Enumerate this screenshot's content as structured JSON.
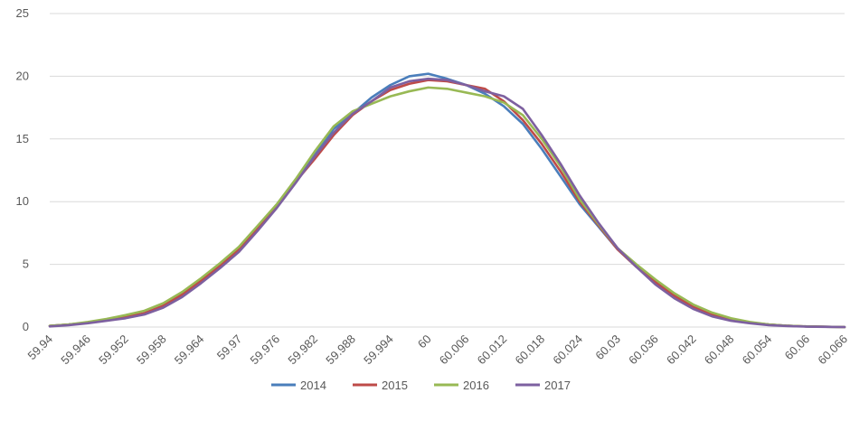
{
  "chart_data": {
    "type": "line",
    "title": "",
    "xlabel": "",
    "ylabel": "",
    "ylim": [
      0,
      25
    ],
    "yticks": [
      0,
      5,
      10,
      15,
      20,
      25
    ],
    "grid": true,
    "legend_position": "bottom",
    "x": [
      59.94,
      59.943,
      59.946,
      59.949,
      59.952,
      59.955,
      59.958,
      59.961,
      59.964,
      59.967,
      59.97,
      59.973,
      59.976,
      59.979,
      59.982,
      59.985,
      59.988,
      59.991,
      59.994,
      59.997,
      60,
      60.003,
      60.006,
      60.009,
      60.012,
      60.015,
      60.018,
      60.021,
      60.024,
      60.027,
      60.03,
      60.033,
      60.036,
      60.039,
      60.042,
      60.045,
      60.048,
      60.051,
      60.054,
      60.057,
      60.06,
      60.063,
      60.066
    ],
    "x_tick_labels": [
      "59.94",
      "59.946",
      "59.952",
      "59.958",
      "59.964",
      "59.97",
      "59.976",
      "59.982",
      "59.988",
      "59.994",
      "60",
      "60.006",
      "60.012",
      "60.018",
      "60.024",
      "60.03",
      "60.036",
      "60.042",
      "60.048",
      "60.054",
      "60.06",
      "60.066"
    ],
    "series": [
      {
        "name": "2014",
        "color": "#4a7ebb",
        "values": [
          0.1,
          0.2,
          0.35,
          0.55,
          0.8,
          1.1,
          1.7,
          2.6,
          3.7,
          4.9,
          6.2,
          7.9,
          9.6,
          11.6,
          13.7,
          15.8,
          17.0,
          18.3,
          19.3,
          20.0,
          20.2,
          19.8,
          19.3,
          18.6,
          17.6,
          16.2,
          14.2,
          12.0,
          9.8,
          8.0,
          6.2,
          4.8,
          3.6,
          2.5,
          1.6,
          1.0,
          0.6,
          0.35,
          0.2,
          0.1,
          0.05,
          0.02,
          0.0
        ]
      },
      {
        "name": "2015",
        "color": "#be4b48",
        "values": [
          0.1,
          0.2,
          0.35,
          0.55,
          0.8,
          1.1,
          1.7,
          2.6,
          3.7,
          4.9,
          6.2,
          7.9,
          9.6,
          11.6,
          13.4,
          15.3,
          16.9,
          18.0,
          18.9,
          19.4,
          19.7,
          19.6,
          19.3,
          19.0,
          18.0,
          16.5,
          14.6,
          12.4,
          10.0,
          8.1,
          6.2,
          4.8,
          3.6,
          2.5,
          1.6,
          1.0,
          0.6,
          0.35,
          0.2,
          0.1,
          0.05,
          0.02,
          0.0
        ]
      },
      {
        "name": "2016",
        "color": "#98b954",
        "values": [
          0.1,
          0.2,
          0.4,
          0.65,
          0.95,
          1.3,
          1.9,
          2.8,
          3.9,
          5.1,
          6.4,
          8.1,
          9.8,
          11.8,
          14.0,
          16.0,
          17.2,
          17.8,
          18.4,
          18.8,
          19.1,
          19.0,
          18.7,
          18.4,
          17.9,
          16.9,
          15.0,
          12.8,
          10.2,
          8.2,
          6.3,
          5.0,
          3.8,
          2.7,
          1.8,
          1.15,
          0.7,
          0.4,
          0.2,
          0.1,
          0.05,
          0.02,
          0.0
        ]
      },
      {
        "name": "2017",
        "color": "#7d60a0",
        "values": [
          0.05,
          0.15,
          0.3,
          0.5,
          0.7,
          1.0,
          1.55,
          2.4,
          3.5,
          4.7,
          6.0,
          7.7,
          9.5,
          11.5,
          13.6,
          15.5,
          17.0,
          18.0,
          19.1,
          19.6,
          19.8,
          19.7,
          19.3,
          18.8,
          18.4,
          17.4,
          15.3,
          13.0,
          10.5,
          8.3,
          6.3,
          4.8,
          3.4,
          2.3,
          1.45,
          0.85,
          0.5,
          0.3,
          0.15,
          0.08,
          0.03,
          0.01,
          0.0
        ]
      }
    ]
  }
}
